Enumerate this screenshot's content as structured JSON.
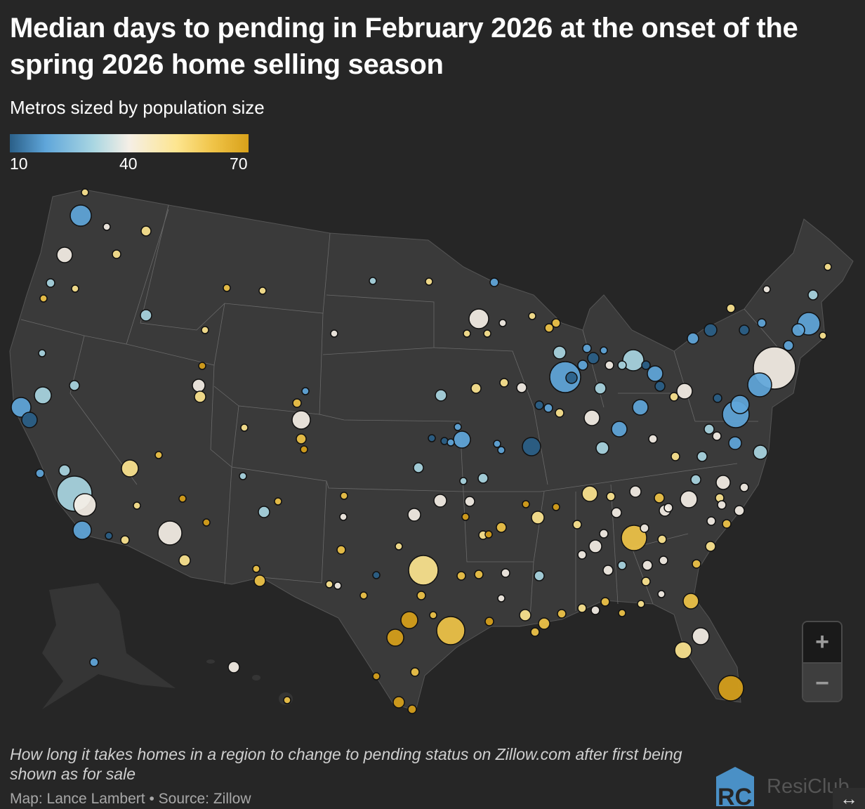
{
  "title": "Median days to pending in February 2026 at the onset of the spring 2026 home selling season",
  "subtitle": "Metros sized by population size",
  "legend": {
    "min_label": "10",
    "mid_label": "40",
    "max_label": "70",
    "colors": [
      "#2a5f88",
      "#5fa6da",
      "#a9d6e2",
      "#f5efe6",
      "#fde58f",
      "#f0c448",
      "#d8a11a"
    ]
  },
  "map": {
    "background": "#262626",
    "land_color": "#3a3a3a",
    "border_color": "#6a6a6a"
  },
  "zoom_controls": {
    "zoom_in": "+",
    "zoom_out": "−"
  },
  "description": "How long it takes homes in a region to change to pending status on Zillow.com after first being shown as for sale",
  "credit": "Map: Lance Lambert • Source: Zillow",
  "logo": {
    "mark": "RC",
    "text": "ResiClub"
  },
  "resize_icon": "↔"
}
